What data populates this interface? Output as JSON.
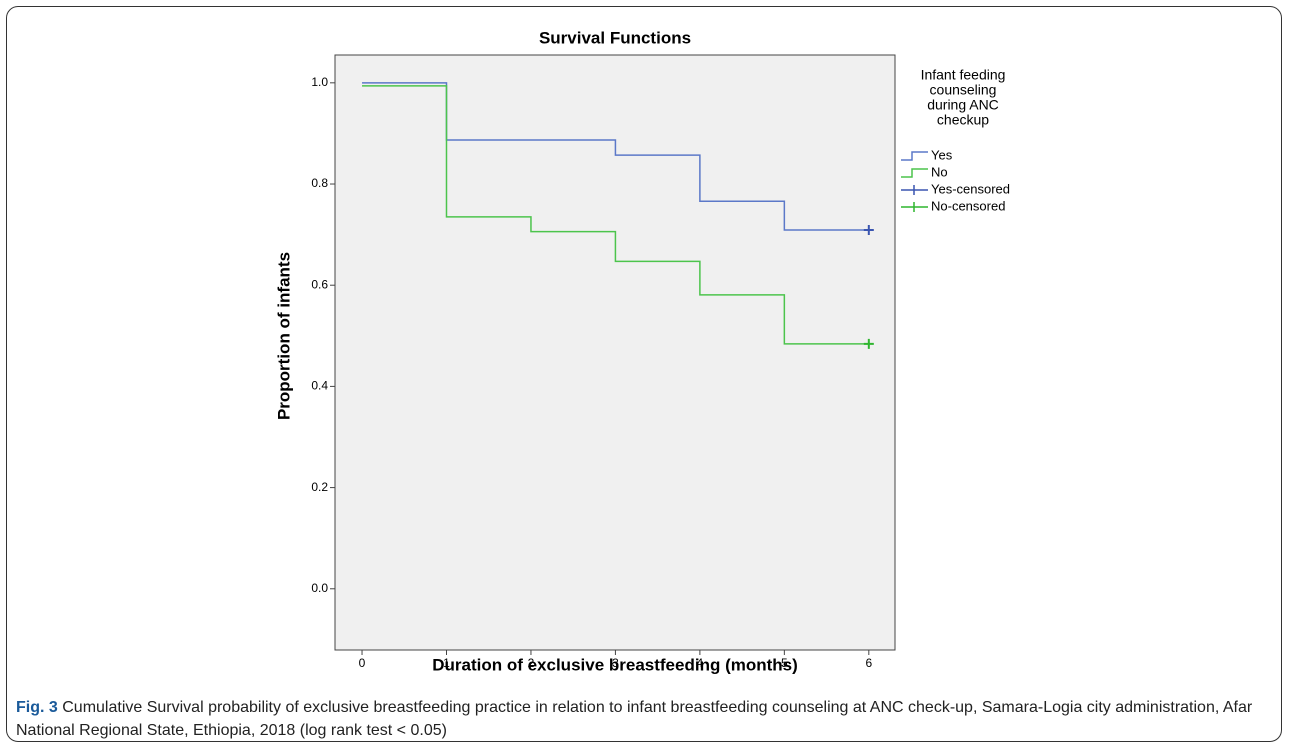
{
  "chart_data": {
    "type": "step",
    "title": "Survival Functions",
    "x_label": "Duration of exclusive breastfeeding (months)",
    "y_label": "Proportion of infants",
    "legend_title": [
      "Infant feeding",
      "counseling",
      "during ANC",
      "checkup"
    ],
    "xlim": [
      -0.32,
      6.31
    ],
    "xticks": [
      0,
      1,
      2,
      3,
      4,
      5,
      6
    ],
    "ylim": [
      -0.121,
      1.055
    ],
    "yticks": [
      {
        "value": 0,
        "label": "0.0"
      },
      0.2,
      0.4,
      0.6,
      0.8,
      {
        "value": 1,
        "label": "1.0"
      }
    ],
    "grid": false,
    "series": [
      {
        "name": "Yes",
        "color": "#5b78c8",
        "kind": "step",
        "x": [
          0,
          1,
          2,
          3,
          4,
          5,
          6
        ],
        "values": [
          1.0,
          0.887,
          0.887,
          0.857,
          0.766,
          0.709,
          0.709
        ]
      },
      {
        "name": "No",
        "color": "#4cc44c",
        "kind": "step",
        "x": [
          0,
          1,
          2,
          3,
          4,
          5,
          6
        ],
        "values": [
          0.994,
          0.735,
          0.706,
          0.647,
          0.581,
          0.484,
          0.484
        ]
      },
      {
        "name": "Yes-censored",
        "color": "#3a55b0",
        "kind": "censor",
        "x": [
          6
        ],
        "values": [
          0.709
        ]
      },
      {
        "name": "No-censored",
        "color": "#2fb52f",
        "kind": "censor",
        "x": [
          6
        ],
        "values": [
          0.484
        ]
      }
    ]
  },
  "caption": {
    "label": "Fig. 3",
    "text": "Cumulative Survival probability of exclusive breastfeeding practice in relation to infant breastfeeding counseling at ANC check-up, Samara-Logia city administration, Afar National Regional State, Ethiopia, 2018 (log rank test < 0.05)"
  }
}
